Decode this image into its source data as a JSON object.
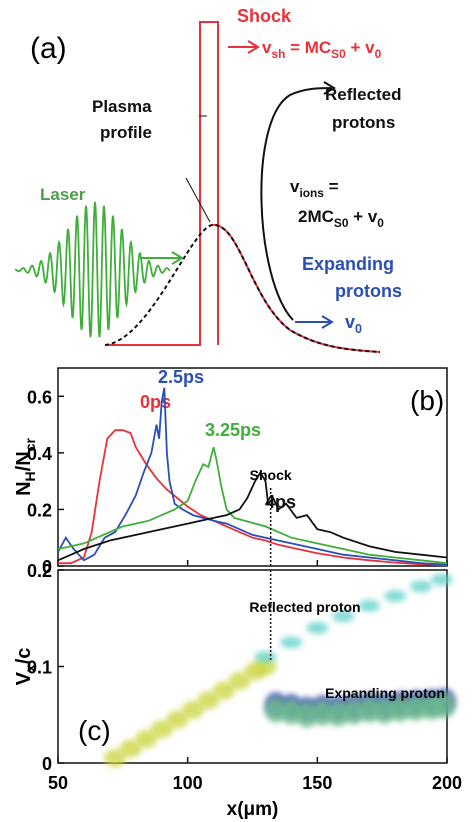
{
  "diagram": {
    "label": "(a)",
    "shock": "Shock",
    "shock_velocity": [
      "v",
      "sh",
      " = MC",
      "S0",
      " + v",
      "0"
    ],
    "plasma_profile": [
      "Plasma",
      "profile"
    ],
    "reflected": [
      "Reflected",
      "protons"
    ],
    "ion_velocity": [
      [
        "v",
        "ions",
        " ="
      ],
      [
        "2MC",
        "S0",
        " + v",
        "0"
      ]
    ],
    "laser": "Laser",
    "expanding": [
      "Expanding",
      "protons"
    ],
    "v0": [
      "v",
      "0"
    ]
  },
  "chart_data": [
    {
      "type": "line",
      "label": "(b)",
      "ylabel": [
        "N",
        "H",
        "/N",
        "cr"
      ],
      "xlim": [
        50,
        200
      ],
      "ylim": [
        0,
        0.7
      ],
      "yticks": [
        0,
        0.2,
        0.4,
        0.6
      ],
      "vlines": [
        {
          "x": 132,
          "label": "Shock"
        }
      ],
      "series": [
        {
          "name": "0ps",
          "color": "#e8313a",
          "x": [
            50,
            55,
            60,
            63,
            66,
            69,
            72,
            75,
            78,
            80,
            84,
            88,
            92,
            96,
            100,
            105,
            110,
            115,
            120,
            125,
            130,
            135,
            140,
            150,
            160,
            170,
            180,
            190,
            200
          ],
          "values": [
            0.01,
            0.01,
            0.03,
            0.12,
            0.3,
            0.45,
            0.48,
            0.48,
            0.47,
            0.42,
            0.36,
            0.31,
            0.27,
            0.24,
            0.21,
            0.18,
            0.16,
            0.14,
            0.12,
            0.1,
            0.09,
            0.075,
            0.065,
            0.045,
            0.03,
            0.02,
            0.012,
            0.006,
            0.003
          ]
        },
        {
          "name": "2.5ps",
          "color": "#2a4fb5",
          "x": [
            50,
            53,
            56,
            60,
            64,
            68,
            72,
            76,
            80,
            83,
            86,
            88,
            89,
            90,
            91,
            92,
            93,
            95,
            98,
            102,
            106,
            110,
            115,
            120,
            125,
            130,
            140,
            150,
            160,
            170,
            180,
            190,
            200
          ],
          "values": [
            0.05,
            0.1,
            0.06,
            0.02,
            0.04,
            0.1,
            0.12,
            0.18,
            0.25,
            0.33,
            0.4,
            0.5,
            0.45,
            0.58,
            0.63,
            0.4,
            0.3,
            0.22,
            0.2,
            0.18,
            0.17,
            0.16,
            0.15,
            0.13,
            0.11,
            0.1,
            0.08,
            0.06,
            0.04,
            0.03,
            0.02,
            0.01,
            0.005
          ]
        },
        {
          "name": "3.25ps",
          "color": "#3fae3a",
          "x": [
            50,
            55,
            60,
            65,
            70,
            75,
            80,
            85,
            90,
            95,
            100,
            103,
            106,
            108,
            110,
            111,
            113,
            115,
            118,
            122,
            126,
            130,
            135,
            140,
            150,
            160,
            170,
            180,
            190,
            200
          ],
          "values": [
            0.06,
            0.07,
            0.08,
            0.1,
            0.12,
            0.14,
            0.15,
            0.16,
            0.18,
            0.2,
            0.23,
            0.3,
            0.36,
            0.35,
            0.42,
            0.38,
            0.28,
            0.2,
            0.17,
            0.16,
            0.15,
            0.14,
            0.12,
            0.1,
            0.08,
            0.06,
            0.04,
            0.03,
            0.02,
            0.01
          ]
        },
        {
          "name": "4ps",
          "color": "#111111",
          "x": [
            50,
            55,
            60,
            70,
            80,
            90,
            100,
            110,
            115,
            120,
            123,
            126,
            128,
            130,
            131,
            133,
            135,
            138,
            142,
            146,
            150,
            155,
            160,
            170,
            180,
            190,
            200
          ],
          "values": [
            0.02,
            0.04,
            0.06,
            0.09,
            0.11,
            0.13,
            0.15,
            0.17,
            0.18,
            0.2,
            0.24,
            0.3,
            0.33,
            0.3,
            0.22,
            0.24,
            0.2,
            0.22,
            0.17,
            0.18,
            0.13,
            0.12,
            0.1,
            0.07,
            0.05,
            0.04,
            0.03
          ]
        }
      ]
    },
    {
      "type": "scatter",
      "label": "(c)",
      "ylabel": [
        "V",
        "x",
        "/c"
      ],
      "xlabel": "x(μm)",
      "xlim": [
        50,
        200
      ],
      "ylim": [
        0,
        0.2
      ],
      "xticks": [
        50,
        100,
        150,
        200
      ],
      "yticks": [
        0,
        0.1,
        0.2
      ],
      "vlines": [
        {
          "x": 132
        }
      ],
      "annotations": [
        "Reflected proton",
        "Expanding proton"
      ],
      "series": [
        {
          "color": "#c9d43a",
          "x": [
            72,
            78,
            84,
            90,
            96,
            102,
            108,
            114,
            120,
            126,
            130
          ],
          "values": [
            0.005,
            0.015,
            0.025,
            0.035,
            0.045,
            0.055,
            0.065,
            0.075,
            0.085,
            0.095,
            0.1
          ]
        },
        {
          "color": "#2a3fa8",
          "x": [
            134,
            140,
            146,
            152,
            158,
            164,
            170,
            176,
            182,
            188,
            194,
            199
          ],
          "values": [
            0.06,
            0.058,
            0.055,
            0.057,
            0.056,
            0.058,
            0.06,
            0.059,
            0.061,
            0.062,
            0.063,
            0.064
          ]
        },
        {
          "color": "#6fc28a",
          "x": [
            134,
            140,
            146,
            152,
            158,
            164,
            170,
            176,
            182,
            188,
            194,
            199
          ],
          "values": [
            0.055,
            0.053,
            0.05,
            0.052,
            0.051,
            0.053,
            0.055,
            0.054,
            0.056,
            0.057,
            0.058,
            0.06
          ]
        },
        {
          "color": "#5fd0c8",
          "x": [
            130,
            140,
            150,
            160,
            170,
            180,
            190,
            198
          ],
          "values": [
            0.11,
            0.125,
            0.14,
            0.152,
            0.163,
            0.173,
            0.183,
            0.19
          ]
        }
      ]
    }
  ]
}
